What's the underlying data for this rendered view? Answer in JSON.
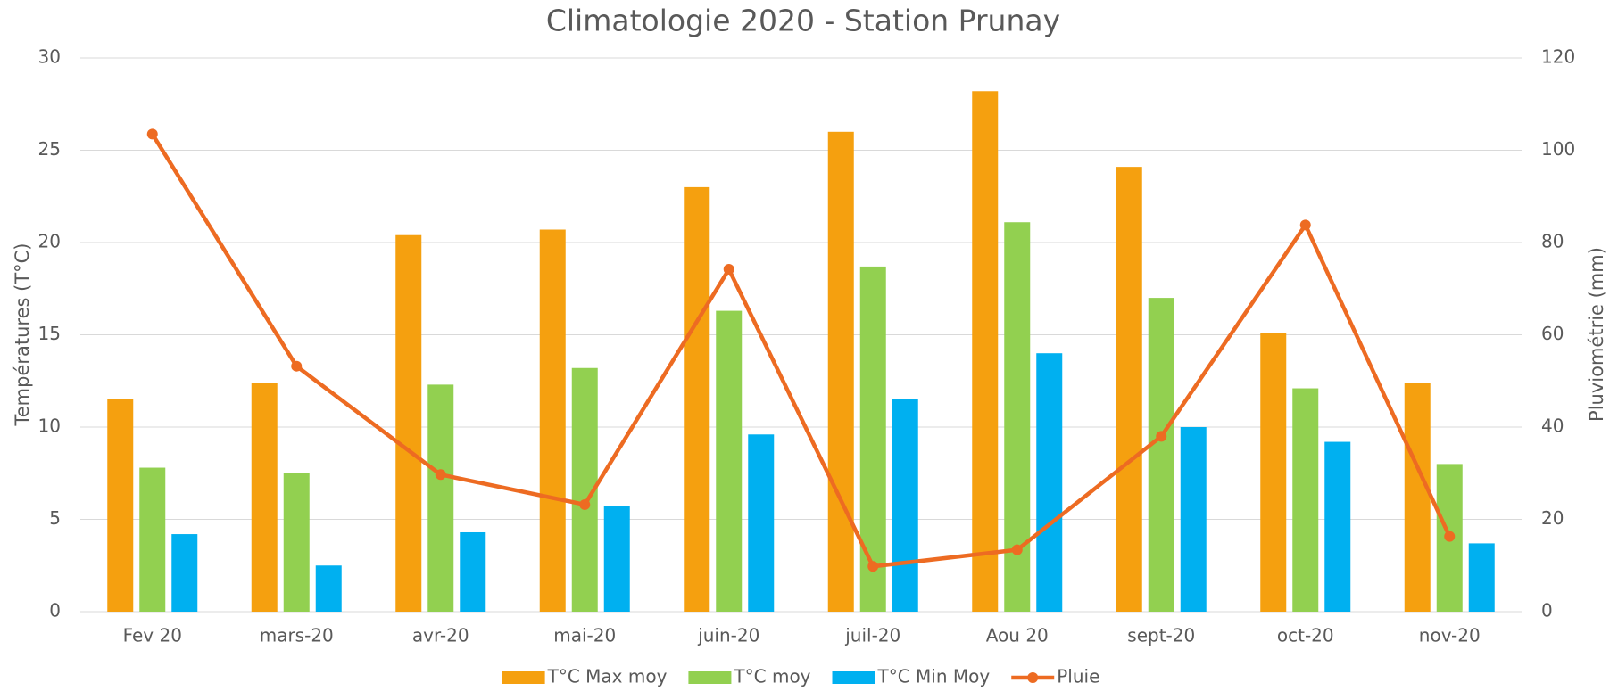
{
  "chart_data": {
    "type": "bar",
    "title": "Climatologie 2020 - Station Prunay",
    "ylabel": "Températures (T°C)",
    "y2label": "Pluviométrie (mm)",
    "categories": [
      "Fev 20",
      "mars-20",
      "avr-20",
      "mai-20",
      "juin-20",
      "juil-20",
      "Aou 20",
      "sept-20",
      "oct-20",
      "nov-20"
    ],
    "series": [
      {
        "name": "T°C Max moy",
        "type": "bar",
        "color": "#f5a00f",
        "values": [
          11.5,
          12.4,
          20.4,
          20.7,
          23.0,
          26.0,
          28.2,
          24.1,
          15.1,
          12.4
        ]
      },
      {
        "name": "T°C moy",
        "type": "bar",
        "color": "#92d050",
        "values": [
          7.8,
          7.5,
          12.3,
          13.2,
          16.3,
          18.7,
          21.1,
          17.0,
          12.1,
          8.0
        ]
      },
      {
        "name": "T°C Min Moy",
        "type": "bar",
        "color": "#00b0f0",
        "values": [
          4.2,
          2.5,
          4.3,
          5.7,
          9.6,
          11.5,
          14.0,
          10.0,
          9.2,
          3.7
        ]
      },
      {
        "name": "Pluie",
        "type": "line",
        "axis": "y2",
        "color": "#ed6b22",
        "values": [
          103.5,
          53.2,
          29.7,
          23.2,
          74.2,
          9.8,
          13.4,
          38.0,
          83.8,
          16.3
        ]
      }
    ],
    "ylim": [
      0,
      30
    ],
    "yticks": [
      0,
      5,
      10,
      15,
      20,
      25,
      30
    ],
    "y2lim": [
      0,
      120
    ],
    "y2ticks": [
      0,
      20,
      40,
      60,
      80,
      100,
      120
    ],
    "grid": true,
    "legend": "bottom"
  }
}
